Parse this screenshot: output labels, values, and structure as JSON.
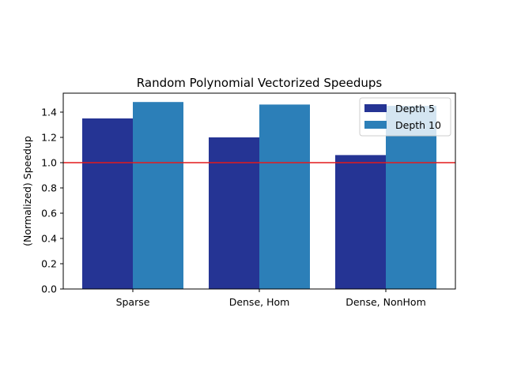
{
  "chart_data": {
    "type": "bar",
    "title": "Random Polynomial Vectorized Speedups",
    "xlabel": "",
    "ylabel": "(Normalized) Speedup",
    "categories": [
      "Sparse",
      "Dense, Hom",
      "Dense, NonHom"
    ],
    "series": [
      {
        "name": "Depth 5",
        "values": [
          1.35,
          1.2,
          1.06
        ],
        "color": "#253494"
      },
      {
        "name": "Depth 10",
        "values": [
          1.48,
          1.46,
          1.45
        ],
        "color": "#2c7fb8"
      }
    ],
    "ylim": [
      0,
      1.55
    ],
    "yticks": [
      "0.0",
      "0.2",
      "0.4",
      "0.6",
      "0.8",
      "1.0",
      "1.2",
      "1.4"
    ],
    "reference_line": {
      "y": 1.0,
      "color": "#e31a1c"
    },
    "legend_position": "top-right",
    "grid": false
  }
}
